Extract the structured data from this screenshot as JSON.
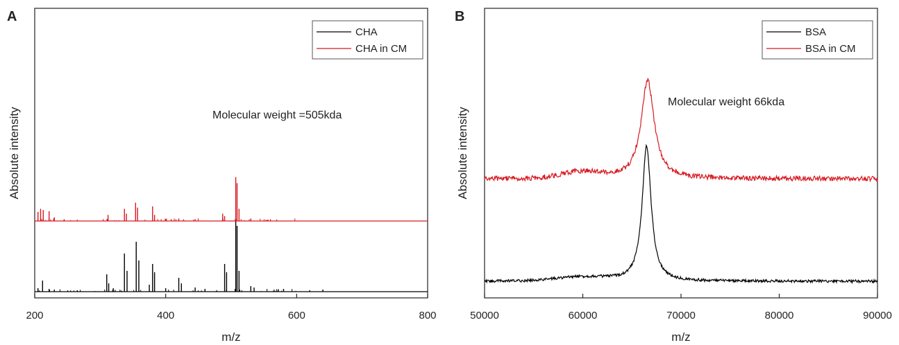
{
  "chart_data": [
    {
      "panel": "A",
      "type": "line",
      "xlabel": "m/z",
      "ylabel": "Absolute  intensity",
      "xlim": [
        200,
        800
      ],
      "xticks": [
        200,
        400,
        600,
        800
      ],
      "yticks": [],
      "annotation": "Molecular weight =505kda",
      "legend_position": "top-right",
      "series": [
        {
          "name": "CHA",
          "color": "#000000",
          "baseline": 0.0,
          "peaks": [
            [
              205,
              0.05
            ],
            [
              212,
              0.16
            ],
            [
              222,
              0.04
            ],
            [
              230,
              0.03
            ],
            [
              265,
              0.02
            ],
            [
              310,
              0.25
            ],
            [
              313,
              0.12
            ],
            [
              320,
              0.05
            ],
            [
              337,
              0.55
            ],
            [
              341,
              0.3
            ],
            [
              355,
              0.72
            ],
            [
              359,
              0.45
            ],
            [
              375,
              0.1
            ],
            [
              380,
              0.4
            ],
            [
              383,
              0.28
            ],
            [
              400,
              0.05
            ],
            [
              420,
              0.2
            ],
            [
              424,
              0.12
            ],
            [
              445,
              0.06
            ],
            [
              460,
              0.04
            ],
            [
              490,
              0.4
            ],
            [
              493,
              0.28
            ],
            [
              507,
              1.05
            ],
            [
              509,
              0.95
            ],
            [
              512,
              0.3
            ],
            [
              530,
              0.08
            ],
            [
              535,
              0.06
            ],
            [
              580,
              0.04
            ],
            [
              620,
              0.02
            ],
            [
              640,
              0.03
            ]
          ]
        },
        {
          "name": "CHA in CM",
          "color": "#d71920",
          "baseline": 0.0,
          "peaks": [
            [
              205,
              0.15
            ],
            [
              209,
              0.2
            ],
            [
              213,
              0.18
            ],
            [
              222,
              0.16
            ],
            [
              230,
              0.06
            ],
            [
              245,
              0.03
            ],
            [
              265,
              0.02
            ],
            [
              312,
              0.1
            ],
            [
              337,
              0.2
            ],
            [
              340,
              0.12
            ],
            [
              354,
              0.3
            ],
            [
              357,
              0.22
            ],
            [
              380,
              0.24
            ],
            [
              383,
              0.1
            ],
            [
              420,
              0.04
            ],
            [
              445,
              0.03
            ],
            [
              487,
              0.12
            ],
            [
              490,
              0.08
            ],
            [
              507,
              0.72
            ],
            [
              509,
              0.62
            ],
            [
              512,
              0.2
            ],
            [
              530,
              0.04
            ]
          ]
        }
      ]
    },
    {
      "panel": "B",
      "type": "line",
      "xlabel": "m/z",
      "ylabel": "Absolute intensity",
      "xlim": [
        50000,
        90000
      ],
      "xticks": [
        50000,
        60000,
        70000,
        80000,
        90000
      ],
      "yticks": [],
      "annotation": "Molecular weight  66kda",
      "legend_position": "top-right",
      "series": [
        {
          "name": "BSA",
          "color": "#000000",
          "baseline": 0.0,
          "peak_center": 66500,
          "peak_height": 1.0,
          "peak_width": 550,
          "hump": [
            [
              60000,
              0.03,
              4000
            ]
          ]
        },
        {
          "name": "BSA in CM",
          "color": "#d71920",
          "baseline": 0.0,
          "peak_center": 66600,
          "peak_height": 0.75,
          "peak_width": 800,
          "hump": [
            [
              60000,
              0.05,
              3000
            ]
          ]
        }
      ]
    }
  ]
}
